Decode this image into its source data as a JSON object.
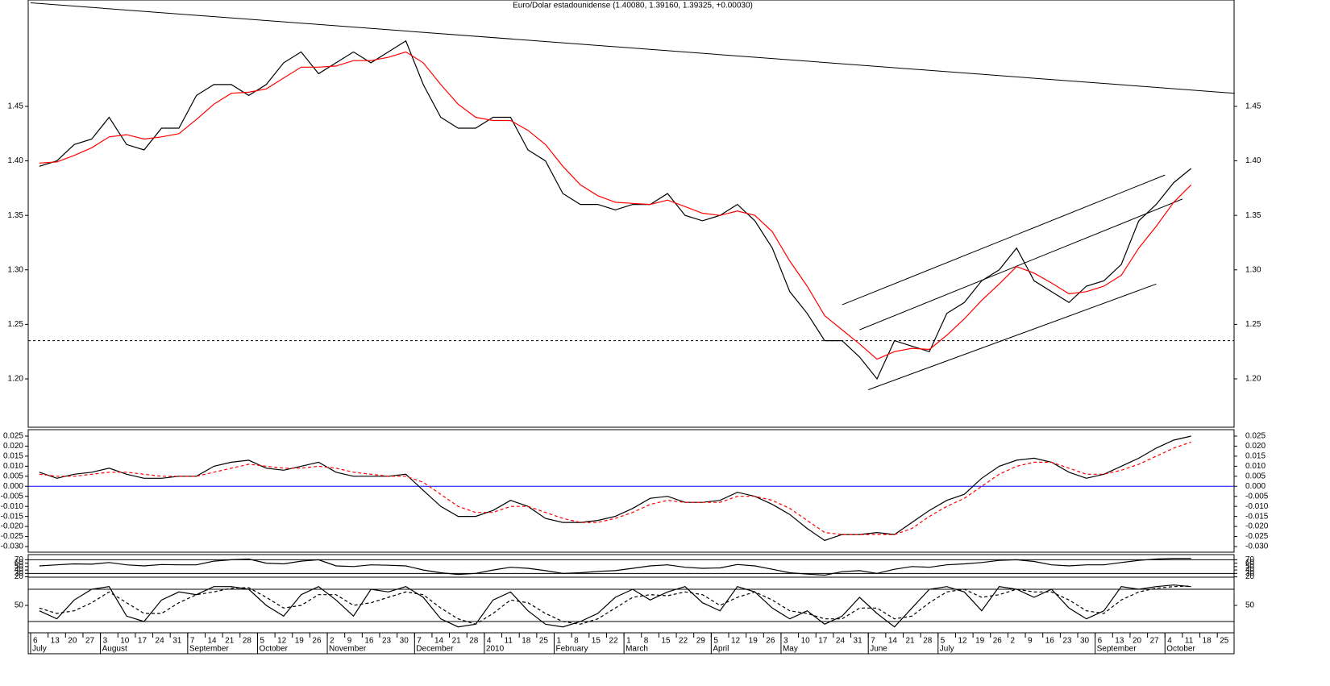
{
  "chart_data": [
    {
      "type": "line",
      "title": "Euro/Dolar estadounidense (1.40080, 1.39160, 1.39325, +0.00030)",
      "categories": [
        "6",
        "13",
        "20",
        "27",
        "3",
        "10",
        "17",
        "24",
        "31",
        "7",
        "14",
        "21",
        "28",
        "5",
        "12",
        "19",
        "26",
        "2",
        "9",
        "16",
        "23",
        "30",
        "7",
        "14",
        "21",
        "28",
        "4",
        "11",
        "18",
        "25",
        "1",
        "8",
        "15",
        "22",
        "1",
        "8",
        "15",
        "22",
        "29",
        "5",
        "12",
        "19",
        "26",
        "3",
        "10",
        "17",
        "24",
        "31",
        "7",
        "14",
        "21",
        "28",
        "5",
        "12",
        "19",
        "26",
        "2",
        "9",
        "16",
        "23",
        "30",
        "6",
        "13",
        "20",
        "27",
        "4",
        "11",
        "18",
        "25"
      ],
      "month_labels": [
        "July",
        null,
        null,
        null,
        "August",
        null,
        null,
        null,
        null,
        "September",
        null,
        null,
        null,
        "October",
        null,
        null,
        null,
        "November",
        null,
        null,
        null,
        null,
        "December",
        null,
        null,
        null,
        "2010",
        null,
        null,
        null,
        "February",
        null,
        null,
        null,
        "March",
        null,
        null,
        null,
        null,
        "April",
        null,
        null,
        null,
        "May",
        null,
        null,
        null,
        null,
        "June",
        null,
        null,
        null,
        "July",
        null,
        null,
        null,
        null,
        null,
        null,
        null,
        null,
        "September",
        null,
        null,
        null,
        "October",
        null,
        null,
        null
      ],
      "ylim": [
        1.1556,
        1.5476
      ],
      "yticks": [
        {
          "value": 1.2,
          "label": "1.20"
        },
        1.25,
        {
          "value": 1.3,
          "label": "1.30"
        },
        1.35,
        {
          "value": 1.4,
          "label": "1.40"
        },
        1.45
      ],
      "series": [
        {
          "color": "#000000",
          "values": [
            1.395,
            1.4,
            1.415,
            1.42,
            1.44,
            1.415,
            1.41,
            1.43,
            1.43,
            1.46,
            1.47,
            1.47,
            1.46,
            1.47,
            1.49,
            1.5,
            1.48,
            1.49,
            1.5,
            1.49,
            1.5,
            1.51,
            1.47,
            1.44,
            1.43,
            1.43,
            1.44,
            1.44,
            1.41,
            1.4,
            1.37,
            1.36,
            1.36,
            1.355,
            1.36,
            1.36,
            1.37,
            1.35,
            1.345,
            1.35,
            1.36,
            1.345,
            1.32,
            1.28,
            1.26,
            1.235,
            1.235,
            1.22,
            1.2,
            1.235,
            1.23,
            1.225,
            1.26,
            1.27,
            1.29,
            1.3,
            1.32,
            1.29,
            1.28,
            1.27,
            1.285,
            1.29,
            1.305,
            1.345,
            1.36,
            1.38,
            1.393,
            null,
            null
          ]
        },
        {
          "color": "#ff0000",
          "values": [
            1.398,
            1.399,
            1.405,
            1.412,
            1.422,
            1.424,
            1.42,
            1.422,
            1.425,
            1.438,
            1.452,
            1.462,
            1.463,
            1.466,
            1.476,
            1.486,
            1.486,
            1.487,
            1.492,
            1.492,
            1.495,
            1.5,
            1.49,
            1.47,
            1.452,
            1.44,
            1.437,
            1.437,
            1.428,
            1.415,
            1.395,
            1.378,
            1.368,
            1.362,
            1.361,
            1.36,
            1.364,
            1.358,
            1.352,
            1.35,
            1.354,
            1.35,
            1.335,
            1.308,
            1.285,
            1.258,
            1.245,
            1.232,
            1.218,
            1.225,
            1.228,
            1.227,
            1.24,
            1.255,
            1.272,
            1.287,
            1.303,
            1.297,
            1.288,
            1.278,
            1.28,
            1.285,
            1.295,
            1.32,
            1.34,
            1.362,
            1.378,
            null,
            null
          ]
        }
      ],
      "trendlines": [
        {
          "x": [
            0,
            69
          ],
          "y": [
            1.545,
            1.462
          ],
          "color": "#000000"
        },
        {
          "x": [
            46.5,
            65
          ],
          "y": [
            1.268,
            1.387
          ],
          "color": "#000000"
        },
        {
          "x": [
            47.5,
            66
          ],
          "y": [
            1.245,
            1.365
          ],
          "color": "#000000"
        },
        {
          "x": [
            48,
            64.5
          ],
          "y": [
            1.19,
            1.287
          ],
          "color": "#000000"
        }
      ],
      "reference_lines": [
        {
          "value": 1.235,
          "color": "#000000",
          "style": "dash"
        }
      ]
    },
    {
      "type": "line",
      "ylim": [
        -0.0328,
        0.0282
      ],
      "yticks": [
        0.025,
        {
          "value": 0.02,
          "label": "0.020"
        },
        0.015,
        {
          "value": 0.01,
          "label": "0.010"
        },
        0.005,
        {
          "value": 0,
          "label": "0.000"
        },
        -0.005,
        {
          "value": -0.01,
          "label": "-0.010"
        },
        -0.015,
        {
          "value": -0.02,
          "label": "-0.020"
        },
        -0.025,
        {
          "value": -0.03,
          "label": "-0.030"
        }
      ],
      "series": [
        {
          "color": "#000000",
          "values": [
            0.007,
            0.004,
            0.006,
            0.007,
            0.009,
            0.006,
            0.004,
            0.004,
            0.005,
            0.005,
            0.01,
            0.012,
            0.013,
            0.009,
            0.008,
            0.01,
            0.012,
            0.007,
            0.005,
            0.005,
            0.005,
            0.006,
            -0.002,
            -0.01,
            -0.015,
            -0.015,
            -0.012,
            -0.007,
            -0.01,
            -0.016,
            -0.018,
            -0.018,
            -0.017,
            -0.015,
            -0.011,
            -0.006,
            -0.005,
            -0.008,
            -0.008,
            -0.007,
            -0.003,
            -0.005,
            -0.009,
            -0.014,
            -0.021,
            -0.027,
            -0.024,
            -0.024,
            -0.023,
            -0.024,
            -0.018,
            -0.012,
            -0.007,
            -0.004,
            0.004,
            0.01,
            0.013,
            0.014,
            0.012,
            0.007,
            0.004,
            0.006,
            0.01,
            0.014,
            0.019,
            0.023,
            0.025,
            null,
            null
          ]
        },
        {
          "color": "#ff0000",
          "style": "dash",
          "values": [
            0.006,
            0.005,
            0.005,
            0.006,
            0.007,
            0.007,
            0.006,
            0.005,
            0.005,
            0.005,
            0.007,
            0.009,
            0.011,
            0.01,
            0.009,
            0.009,
            0.01,
            0.009,
            0.007,
            0.006,
            0.005,
            0.005,
            0.002,
            -0.004,
            -0.01,
            -0.013,
            -0.013,
            -0.01,
            -0.01,
            -0.013,
            -0.016,
            -0.018,
            -0.018,
            -0.016,
            -0.013,
            -0.009,
            -0.007,
            -0.008,
            -0.008,
            -0.008,
            -0.005,
            -0.005,
            -0.007,
            -0.011,
            -0.017,
            -0.023,
            -0.024,
            -0.024,
            -0.024,
            -0.024,
            -0.021,
            -0.015,
            -0.01,
            -0.006,
            0.0,
            0.006,
            0.01,
            0.012,
            0.012,
            0.009,
            0.006,
            0.006,
            0.008,
            0.011,
            0.015,
            0.019,
            0.022,
            null,
            null
          ]
        }
      ],
      "reference_lines": [
        {
          "value": 0,
          "color": "#0000ff"
        }
      ]
    },
    {
      "type": "line",
      "ylim": [
        19,
        85
      ],
      "yticks": [
        20,
        30,
        40,
        50,
        60,
        70
      ],
      "series": [
        {
          "color": "#000000",
          "values": [
            52,
            55,
            58,
            57,
            62,
            55,
            52,
            56,
            55,
            55,
            66,
            70,
            72,
            60,
            58,
            66,
            70,
            52,
            50,
            55,
            54,
            52,
            40,
            32,
            27,
            30,
            40,
            48,
            45,
            38,
            30,
            32,
            36,
            38,
            45,
            52,
            55,
            48,
            45,
            46,
            56,
            52,
            42,
            32,
            28,
            25,
            35,
            38,
            30,
            42,
            50,
            48,
            55,
            58,
            62,
            68,
            70,
            65,
            55,
            52,
            55,
            55,
            62,
            68,
            72,
            74,
            74,
            null,
            null
          ]
        }
      ],
      "reference_lines": [
        {
          "value": 70,
          "color": "#000000"
        },
        {
          "value": 30,
          "color": "#000000"
        }
      ]
    },
    {
      "type": "line",
      "ylim": [
        -1,
        102.5
      ],
      "yticks": [
        50
      ],
      "series": [
        {
          "color": "#000000",
          "values": [
            40,
            25,
            60,
            80,
            85,
            30,
            20,
            60,
            75,
            70,
            85,
            85,
            80,
            50,
            30,
            70,
            85,
            60,
            30,
            80,
            75,
            85,
            65,
            25,
            10,
            15,
            60,
            75,
            40,
            15,
            10,
            20,
            35,
            65,
            80,
            60,
            75,
            85,
            55,
            40,
            85,
            75,
            45,
            25,
            40,
            15,
            30,
            65,
            35,
            10,
            45,
            80,
            85,
            75,
            40,
            85,
            80,
            65,
            80,
            45,
            25,
            40,
            85,
            80,
            85,
            88,
            85,
            null,
            null
          ]
        },
        {
          "color": "#000000",
          "style": "dash",
          "values": [
            45,
            35,
            40,
            55,
            75,
            55,
            35,
            35,
            55,
            70,
            75,
            82,
            83,
            65,
            45,
            50,
            70,
            70,
            50,
            55,
            65,
            75,
            70,
            45,
            25,
            15,
            35,
            60,
            55,
            35,
            20,
            15,
            25,
            45,
            65,
            70,
            68,
            75,
            70,
            50,
            65,
            75,
            60,
            40,
            35,
            25,
            25,
            45,
            45,
            25,
            30,
            55,
            75,
            80,
            65,
            70,
            80,
            75,
            75,
            60,
            40,
            35,
            60,
            75,
            82,
            85,
            86,
            null,
            null
          ]
        }
      ],
      "reference_lines": [
        {
          "value": 80,
          "color": "#000000"
        },
        {
          "value": 20,
          "color": "#000000"
        }
      ]
    }
  ]
}
